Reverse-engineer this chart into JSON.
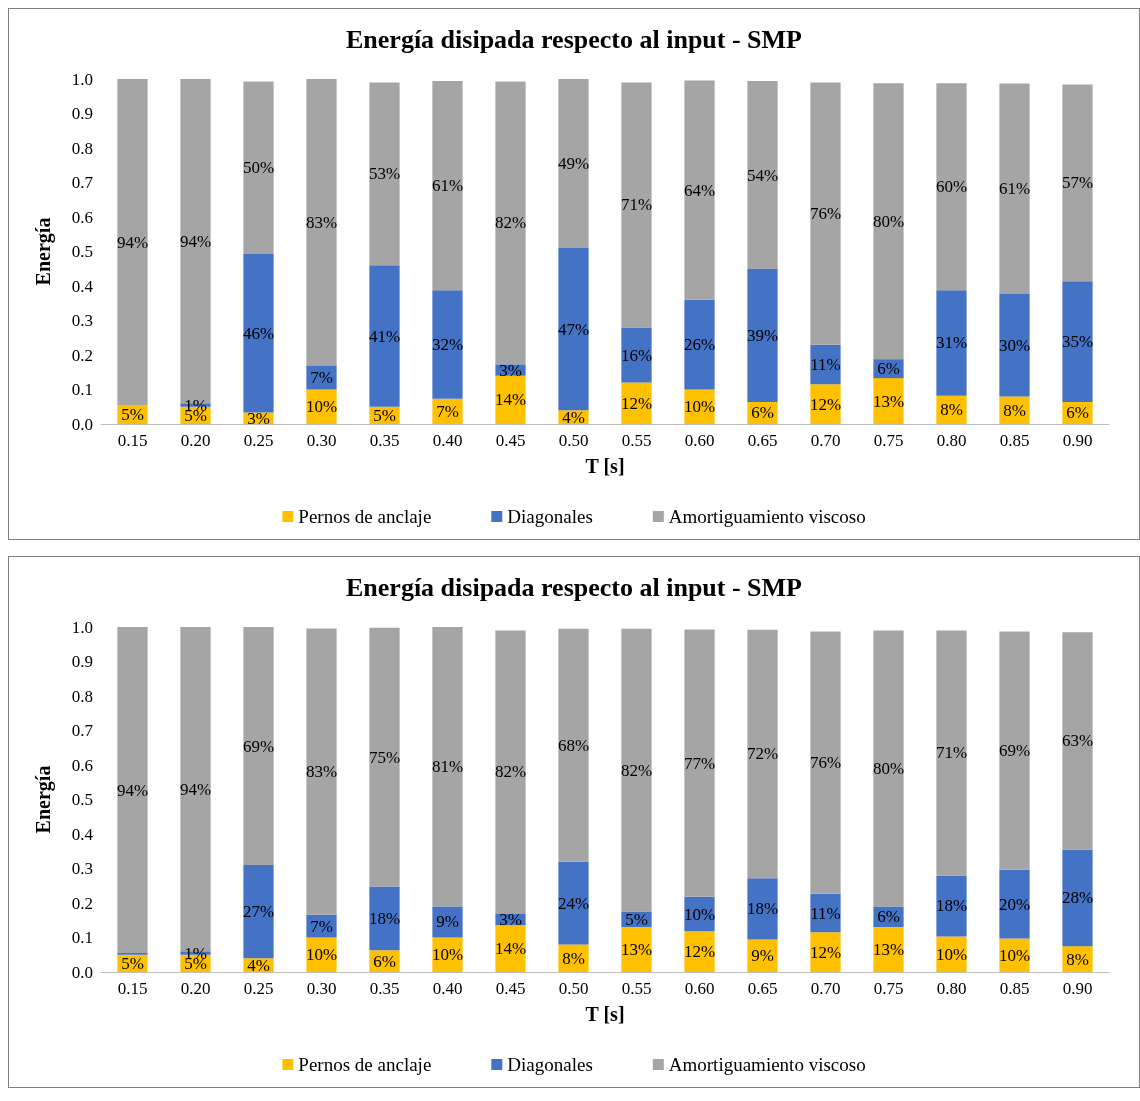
{
  "chart_data": [
    {
      "type": "bar",
      "stacked": true,
      "title": "Energía disipada respecto al input - SMP",
      "xlabel": "T [s]",
      "ylabel": "Energía",
      "legend": "bottom",
      "categories": [
        "0.15",
        "0.20",
        "0.25",
        "0.30",
        "0.35",
        "0.40",
        "0.45",
        "0.50",
        "0.55",
        "0.60",
        "0.65",
        "0.70",
        "0.75",
        "0.80",
        "0.85",
        "0.90"
      ],
      "ylim": [
        0,
        1
      ],
      "yticks": [
        {
          "value": 0,
          "label": "0.0"
        },
        {
          "value": 0.1,
          "label": "0.1"
        },
        {
          "value": 0.2,
          "label": "0.2"
        },
        {
          "value": 0.3,
          "label": "0.3"
        },
        {
          "value": 0.4,
          "label": "0.4"
        },
        {
          "value": 0.5,
          "label": "0.5"
        },
        {
          "value": 0.6,
          "label": "0.6"
        },
        {
          "value": 0.7,
          "label": "0.7"
        },
        {
          "value": 0.8,
          "label": "0.8"
        },
        {
          "value": 0.9,
          "label": "0.9"
        },
        {
          "value": 1,
          "label": "1.0"
        }
      ],
      "series": [
        {
          "name": "Pernos de anclaje",
          "color": "#ffc000",
          "values": [
            0.055,
            0.05,
            0.033,
            0.1,
            0.05,
            0.073,
            0.14,
            0.04,
            0.12,
            0.1,
            0.064,
            0.115,
            0.133,
            0.082,
            0.08,
            0.064
          ],
          "value_labels": [
            "5%",
            "5%",
            "3%",
            "10%",
            "5%",
            "7%",
            "14%",
            "4%",
            "12%",
            "10%",
            "6%",
            "12%",
            "13%",
            "8%",
            "8%",
            "6%"
          ]
        },
        {
          "name": "Diagonales",
          "color": "#4472c4",
          "values": [
            0.0,
            0.01,
            0.46,
            0.07,
            0.41,
            0.315,
            0.033,
            0.47,
            0.16,
            0.26,
            0.385,
            0.115,
            0.055,
            0.306,
            0.297,
            0.35
          ],
          "value_labels": [
            null,
            "1%",
            "46%",
            "7%",
            "41%",
            "32%",
            "3%",
            "47%",
            "16%",
            "26%",
            "39%",
            "11%",
            "6%",
            "31%",
            "30%",
            "35%"
          ]
        },
        {
          "name": "Amortiguamiento viscoso",
          "color": "#a5a5a5",
          "values": [
            0.945,
            0.94,
            0.5,
            0.83,
            0.53,
            0.606,
            0.82,
            0.49,
            0.71,
            0.636,
            0.545,
            0.76,
            0.8,
            0.6,
            0.61,
            0.57
          ],
          "value_labels": [
            "94%",
            "94%",
            "50%",
            "83%",
            "53%",
            "61%",
            "82%",
            "49%",
            "71%",
            "64%",
            "54%",
            "76%",
            "80%",
            "60%",
            "61%",
            "57%"
          ]
        }
      ]
    },
    {
      "type": "bar",
      "stacked": true,
      "title": "Energía disipada respecto al input - SMP",
      "xlabel": "T [s]",
      "ylabel": "Energía",
      "legend": "bottom",
      "categories": [
        "0.15",
        "0.20",
        "0.25",
        "0.30",
        "0.35",
        "0.40",
        "0.45",
        "0.50",
        "0.55",
        "0.60",
        "0.65",
        "0.70",
        "0.75",
        "0.80",
        "0.85",
        "0.90"
      ],
      "ylim": [
        0,
        1
      ],
      "yticks": [
        {
          "value": 0,
          "label": "0.0"
        },
        {
          "value": 0.1,
          "label": "0.1"
        },
        {
          "value": 0.2,
          "label": "0.2"
        },
        {
          "value": 0.3,
          "label": "0.3"
        },
        {
          "value": 0.4,
          "label": "0.4"
        },
        {
          "value": 0.5,
          "label": "0.5"
        },
        {
          "value": 0.6,
          "label": "0.6"
        },
        {
          "value": 0.7,
          "label": "0.7"
        },
        {
          "value": 0.8,
          "label": "0.8"
        },
        {
          "value": 0.9,
          "label": "0.9"
        },
        {
          "value": 1,
          "label": "1.0"
        }
      ],
      "series": [
        {
          "name": "Pernos de anclaje",
          "color": "#ffc000",
          "values": [
            0.05,
            0.05,
            0.04,
            0.1,
            0.063,
            0.1,
            0.136,
            0.08,
            0.13,
            0.118,
            0.094,
            0.115,
            0.13,
            0.103,
            0.097,
            0.075
          ],
          "value_labels": [
            "5%",
            "5%",
            "4%",
            "10%",
            "6%",
            "10%",
            "14%",
            "8%",
            "13%",
            "12%",
            "9%",
            "12%",
            "13%",
            "10%",
            "10%",
            "8%"
          ]
        },
        {
          "name": "Diagonales",
          "color": "#4472c4",
          "values": [
            0.005,
            0.01,
            0.27,
            0.066,
            0.185,
            0.09,
            0.034,
            0.24,
            0.045,
            0.1,
            0.178,
            0.112,
            0.06,
            0.177,
            0.2,
            0.28
          ],
          "value_labels": [
            null,
            "1%",
            "27%",
            "7%",
            "18%",
            "9%",
            "3%",
            "24%",
            "5%",
            "10%",
            "18%",
            "11%",
            "6%",
            "18%",
            "20%",
            "28%"
          ]
        },
        {
          "name": "Amortiguamiento viscoso",
          "color": "#a5a5a5",
          "values": [
            0.945,
            0.94,
            0.69,
            0.83,
            0.75,
            0.81,
            0.82,
            0.675,
            0.82,
            0.775,
            0.72,
            0.76,
            0.8,
            0.71,
            0.69,
            0.63
          ],
          "value_labels": [
            "94%",
            "94%",
            "69%",
            "83%",
            "75%",
            "81%",
            "82%",
            "68%",
            "82%",
            "77%",
            "72%",
            "76%",
            "80%",
            "71%",
            "69%",
            "63%"
          ]
        }
      ]
    }
  ]
}
